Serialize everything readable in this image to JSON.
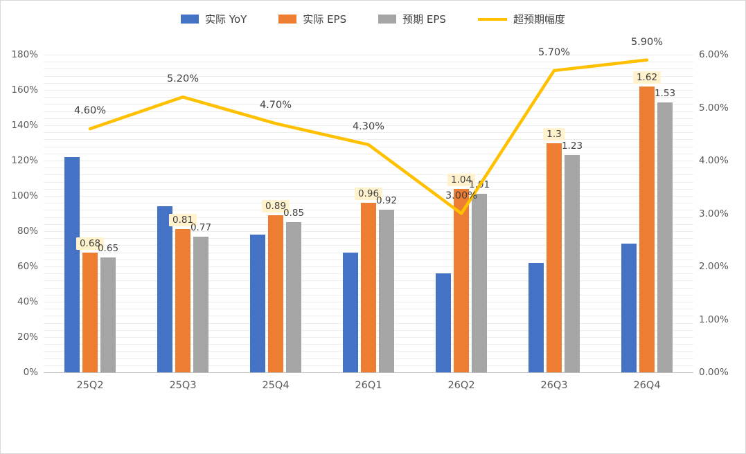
{
  "chart_data": {
    "type": "combo-bar-line",
    "title": "",
    "categories": [
      "25Q2",
      "25Q3",
      "25Q4",
      "26Q1",
      "26Q2",
      "26Q3",
      "26Q4"
    ],
    "series": [
      {
        "key": "actual-yoy",
        "name": "实际 YoY",
        "type": "bar",
        "axis": "left",
        "color": "#4472C4",
        "values": [
          122,
          94,
          78,
          68,
          56,
          62,
          73
        ]
      },
      {
        "key": "actual-eps",
        "name": "实际 EPS",
        "type": "bar",
        "axis": "left",
        "color": "#ED7D31",
        "values": [
          68,
          81,
          89,
          96,
          104,
          130,
          162
        ],
        "labels": [
          "0.68",
          "0.81",
          "0.89",
          "0.96",
          "1.04",
          "1.3",
          "1.62"
        ],
        "label_bg": "#FFF2CC"
      },
      {
        "key": "expected-eps",
        "name": "预期 EPS",
        "type": "bar",
        "axis": "left",
        "color": "#A5A5A5",
        "values": [
          65,
          77,
          85,
          92,
          101,
          123,
          153
        ],
        "labels": [
          "0.65",
          "0.77",
          "0.85",
          "0.92",
          "1.01",
          "1.23",
          "1.53"
        ]
      },
      {
        "key": "beat-margin",
        "name": "超预期幅度",
        "type": "line",
        "axis": "right",
        "color": "#FFC000",
        "values": [
          4.6,
          5.2,
          4.7,
          4.3,
          3.0,
          5.7,
          5.9
        ],
        "labels": [
          "4.60%",
          "5.20%",
          "4.70%",
          "4.30%",
          "3.00%",
          "5.70%",
          "5.90%"
        ]
      }
    ],
    "left_axis": {
      "min": 0,
      "max": 180,
      "step": 20,
      "ticks": [
        "0%",
        "20%",
        "40%",
        "60%",
        "80%",
        "100%",
        "120%",
        "140%",
        "160%",
        "180%"
      ]
    },
    "right_axis": {
      "min": 0,
      "max": 6,
      "step": 1,
      "ticks": [
        "0.00%",
        "1.00%",
        "2.00%",
        "3.00%",
        "4.00%",
        "5.00%",
        "6.00%"
      ]
    },
    "grid": true,
    "minor_grid_step": 4,
    "legend_position": "top"
  }
}
